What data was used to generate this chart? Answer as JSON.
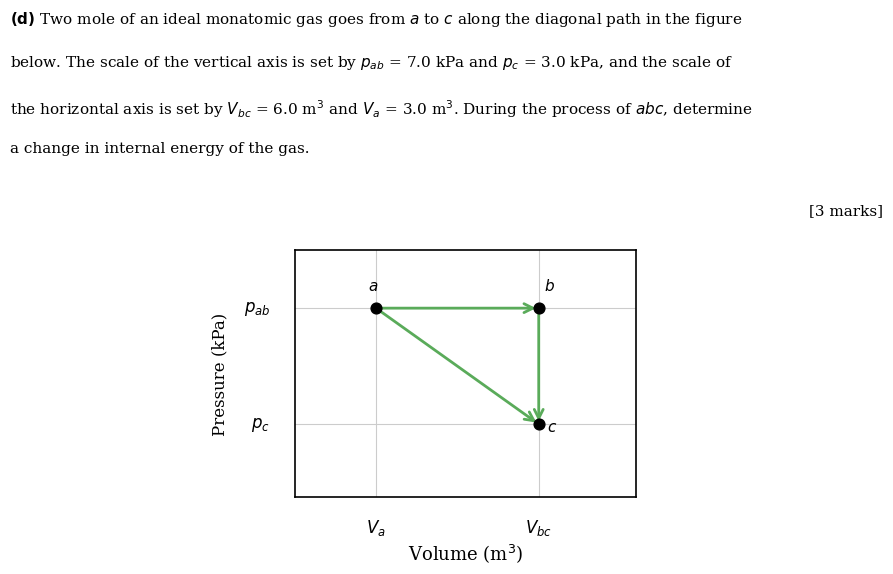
{
  "marks_text": "[3 marks]",
  "p_ab": 7.0,
  "p_c": 3.0,
  "V_a": 3.0,
  "V_bc": 6.0,
  "point_a": [
    3.0,
    7.0
  ],
  "point_b": [
    6.0,
    7.0
  ],
  "point_c": [
    6.0,
    3.0
  ],
  "arrow_color": "#5aab5a",
  "point_color": "#000000",
  "background_color": "#ffffff",
  "xlabel": "Volume (m$^3$)",
  "ylabel": "Pressure (kPa)",
  "Va_label": "$V_a$",
  "Vbc_label": "$V_{bc}$",
  "pab_label": "$p_{ab}$",
  "pc_label": "$p_c$",
  "point_size": 60,
  "fig_width": 9.49,
  "fig_height": 5.87,
  "x_min": 1.5,
  "x_max": 7.8,
  "y_min": 0.5,
  "y_max": 9.0
}
